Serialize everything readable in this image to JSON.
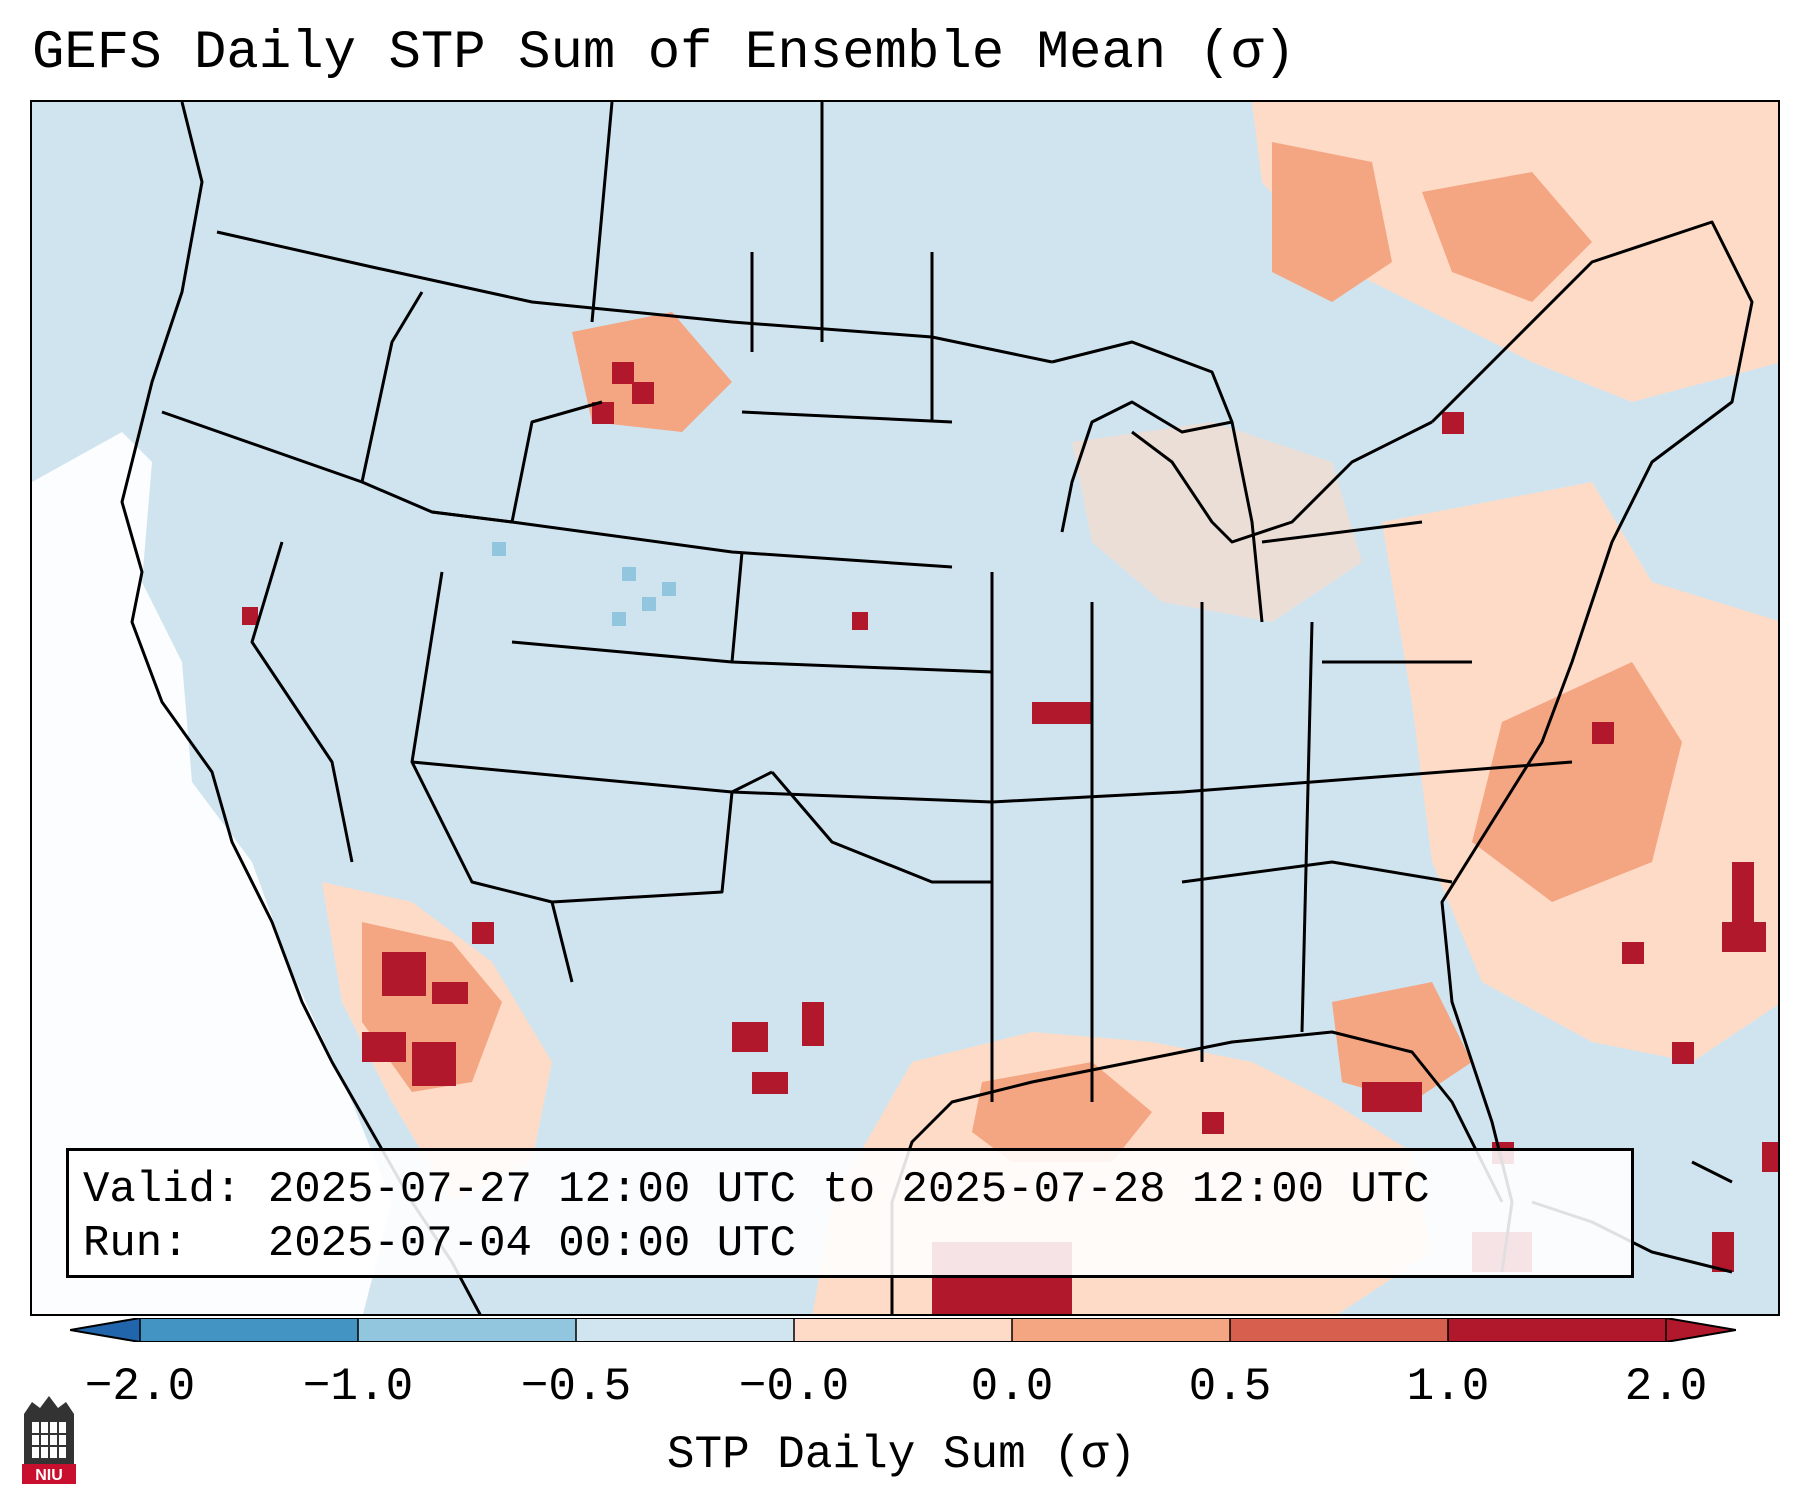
{
  "title": "GEFS Daily STP Sum of Ensemble Mean (σ)",
  "info": {
    "valid_label": "Valid:",
    "valid_value": "2025-07-27 12:00 UTC to 2025-07-28 12:00 UTC",
    "run_label": "Run:",
    "run_value": "2025-07-04 00:00 UTC"
  },
  "colorbar": {
    "label": "STP Daily Sum (σ)",
    "ticks": [
      "−2.0",
      "−1.0",
      "−0.5",
      "−0.0",
      "0.0",
      "0.5",
      "1.0",
      "2.0"
    ],
    "colors": [
      "#4393c3",
      "#92c5de",
      "#d1e5f0",
      "#f7f7f7",
      "#fddbc7",
      "#f4a582",
      "#d6604d",
      "#b2182b"
    ],
    "under_color": "#2166ac",
    "over_color": "#b2182b"
  },
  "map": {
    "ocean_color": "#d0e4f0",
    "land_neutral_color": "#d1e5f0",
    "border_color": "#000000"
  },
  "logo": {
    "text": "NIU"
  }
}
